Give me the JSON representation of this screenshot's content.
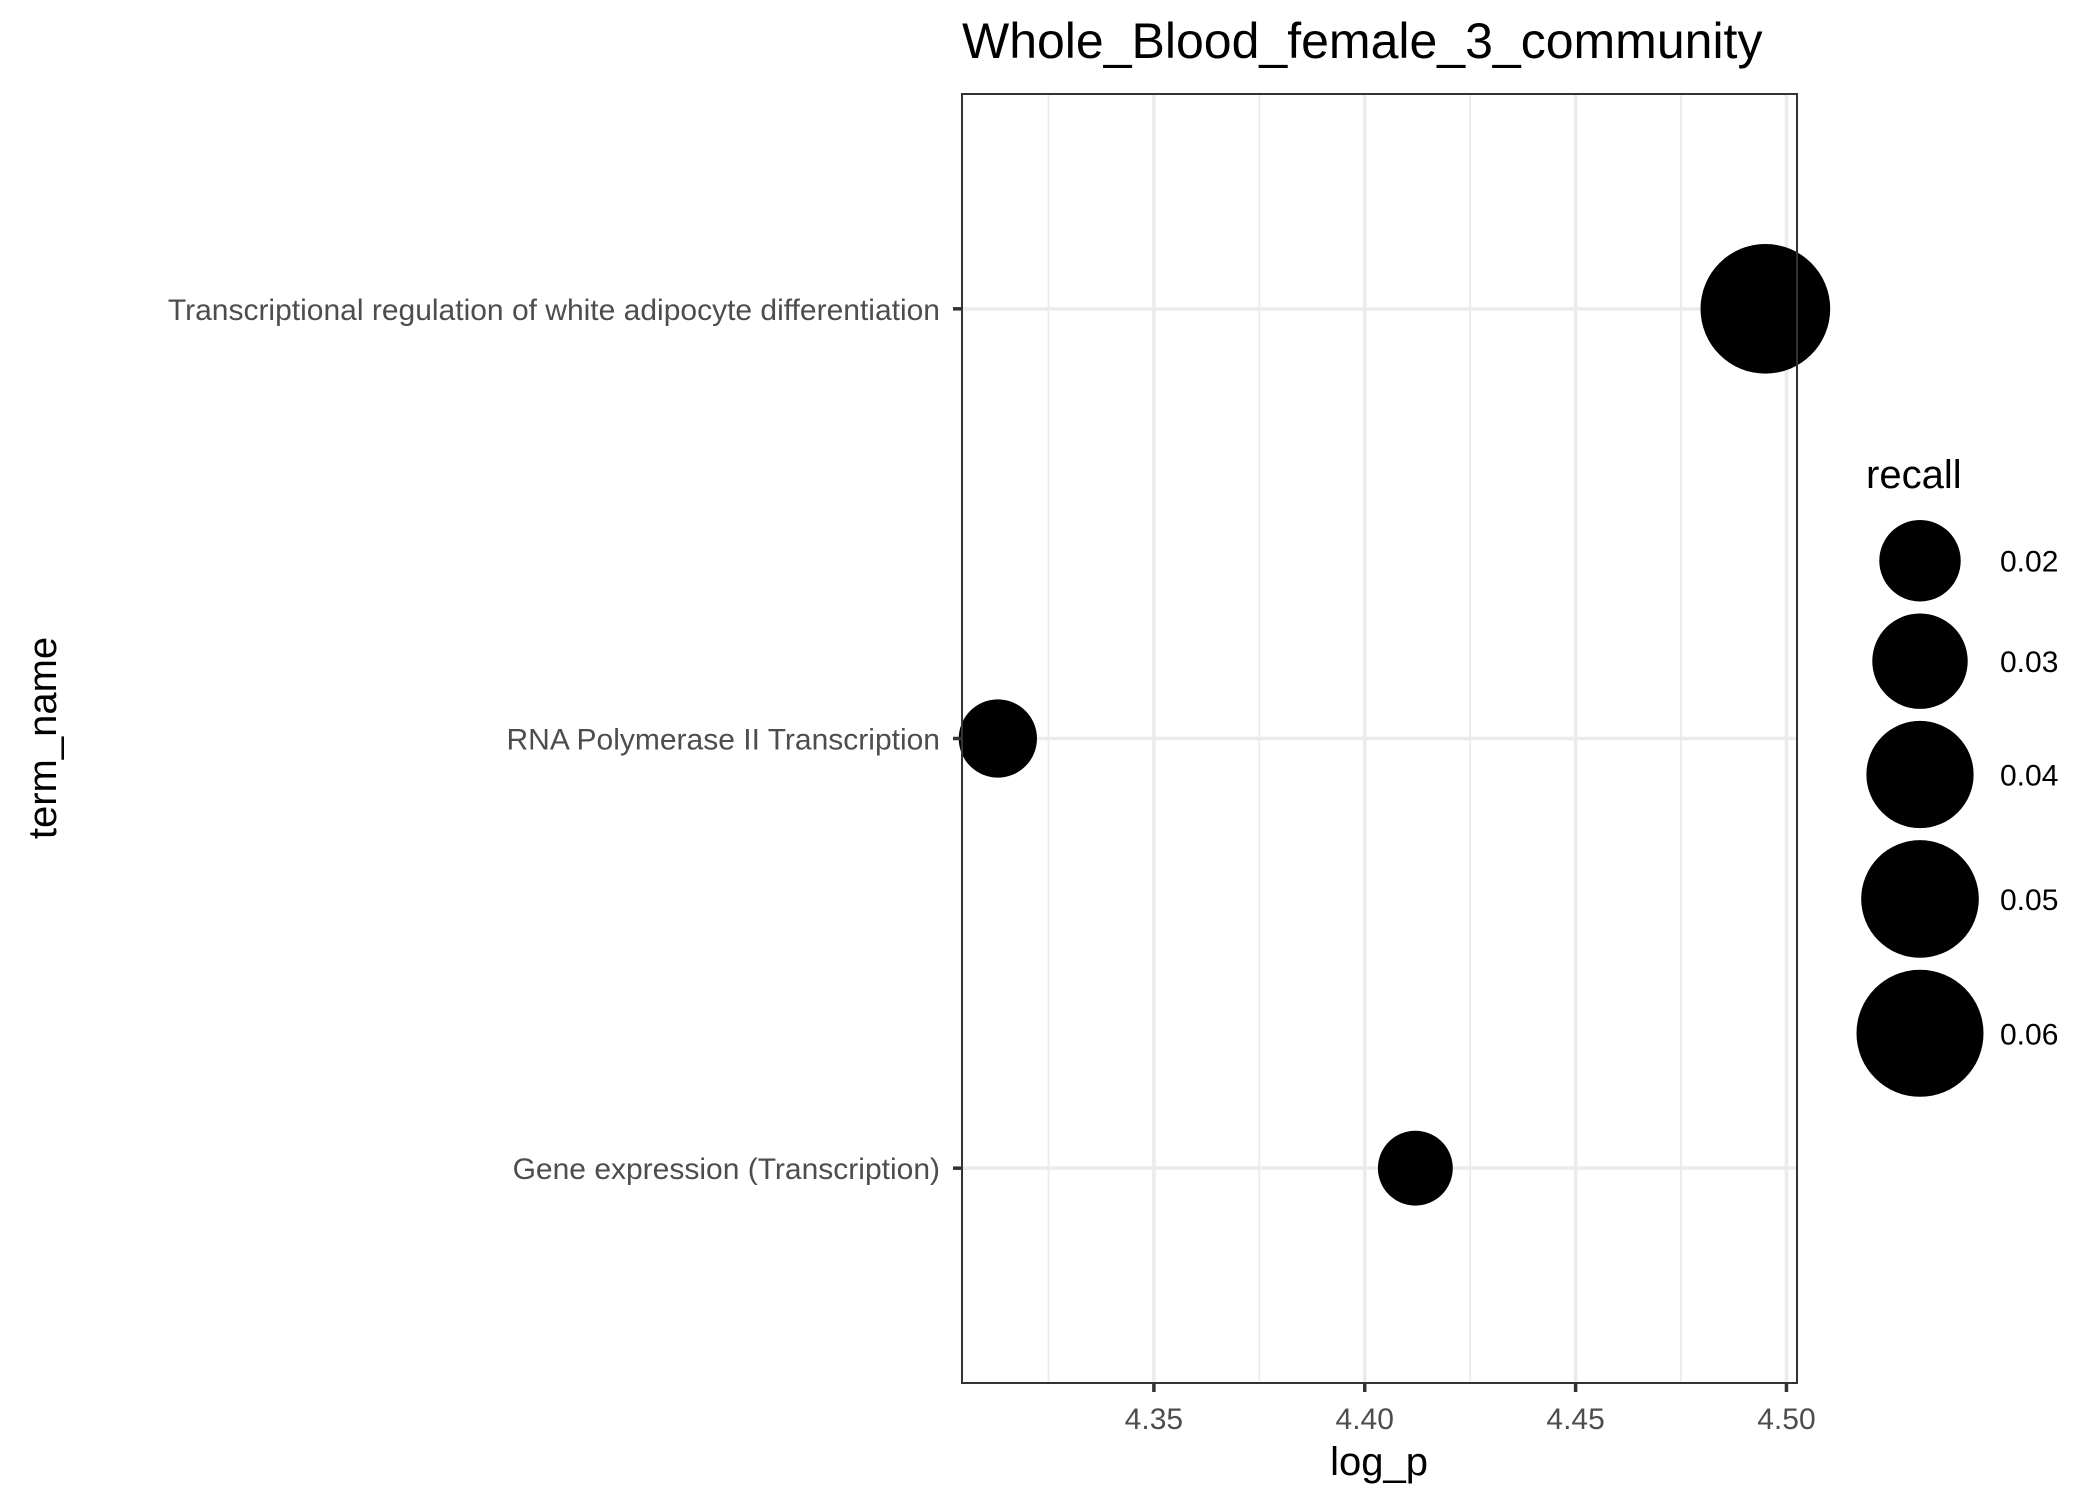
{
  "chart_data": {
    "type": "scatter",
    "title": "Whole_Blood_female_3_community",
    "xlabel": "log_p",
    "ylabel": "term_name",
    "xlim": [
      4.3045,
      4.5025
    ],
    "x_ticks": [
      4.35,
      4.4,
      4.45,
      4.5
    ],
    "x_tick_labels": [
      "4.35",
      "4.40",
      "4.45",
      "4.50"
    ],
    "x_minor_ticks": [
      4.325,
      4.375,
      4.425,
      4.475
    ],
    "categories": [
      "Transcriptional regulation of white adipocyte differentiation",
      "RNA Polymerase II Transcription",
      "Gene expression (Transcription)"
    ],
    "points": [
      {
        "term_name": "Transcriptional regulation of white adipocyte differentiation",
        "log_p": 4.495,
        "recall": 0.063
      },
      {
        "term_name": "RNA Polymerase II Transcription",
        "log_p": 4.313,
        "recall": 0.018
      },
      {
        "term_name": "Gene expression (Transcription)",
        "log_p": 4.412,
        "recall": 0.016
      }
    ],
    "grid": true,
    "point_color": "#000000",
    "size_legend": {
      "title": "recall",
      "position": "right",
      "values": [
        0.02,
        0.03,
        0.04,
        0.05,
        0.06
      ],
      "labels": [
        "0.02",
        "0.03",
        "0.04",
        "0.05",
        "0.06"
      ]
    }
  }
}
